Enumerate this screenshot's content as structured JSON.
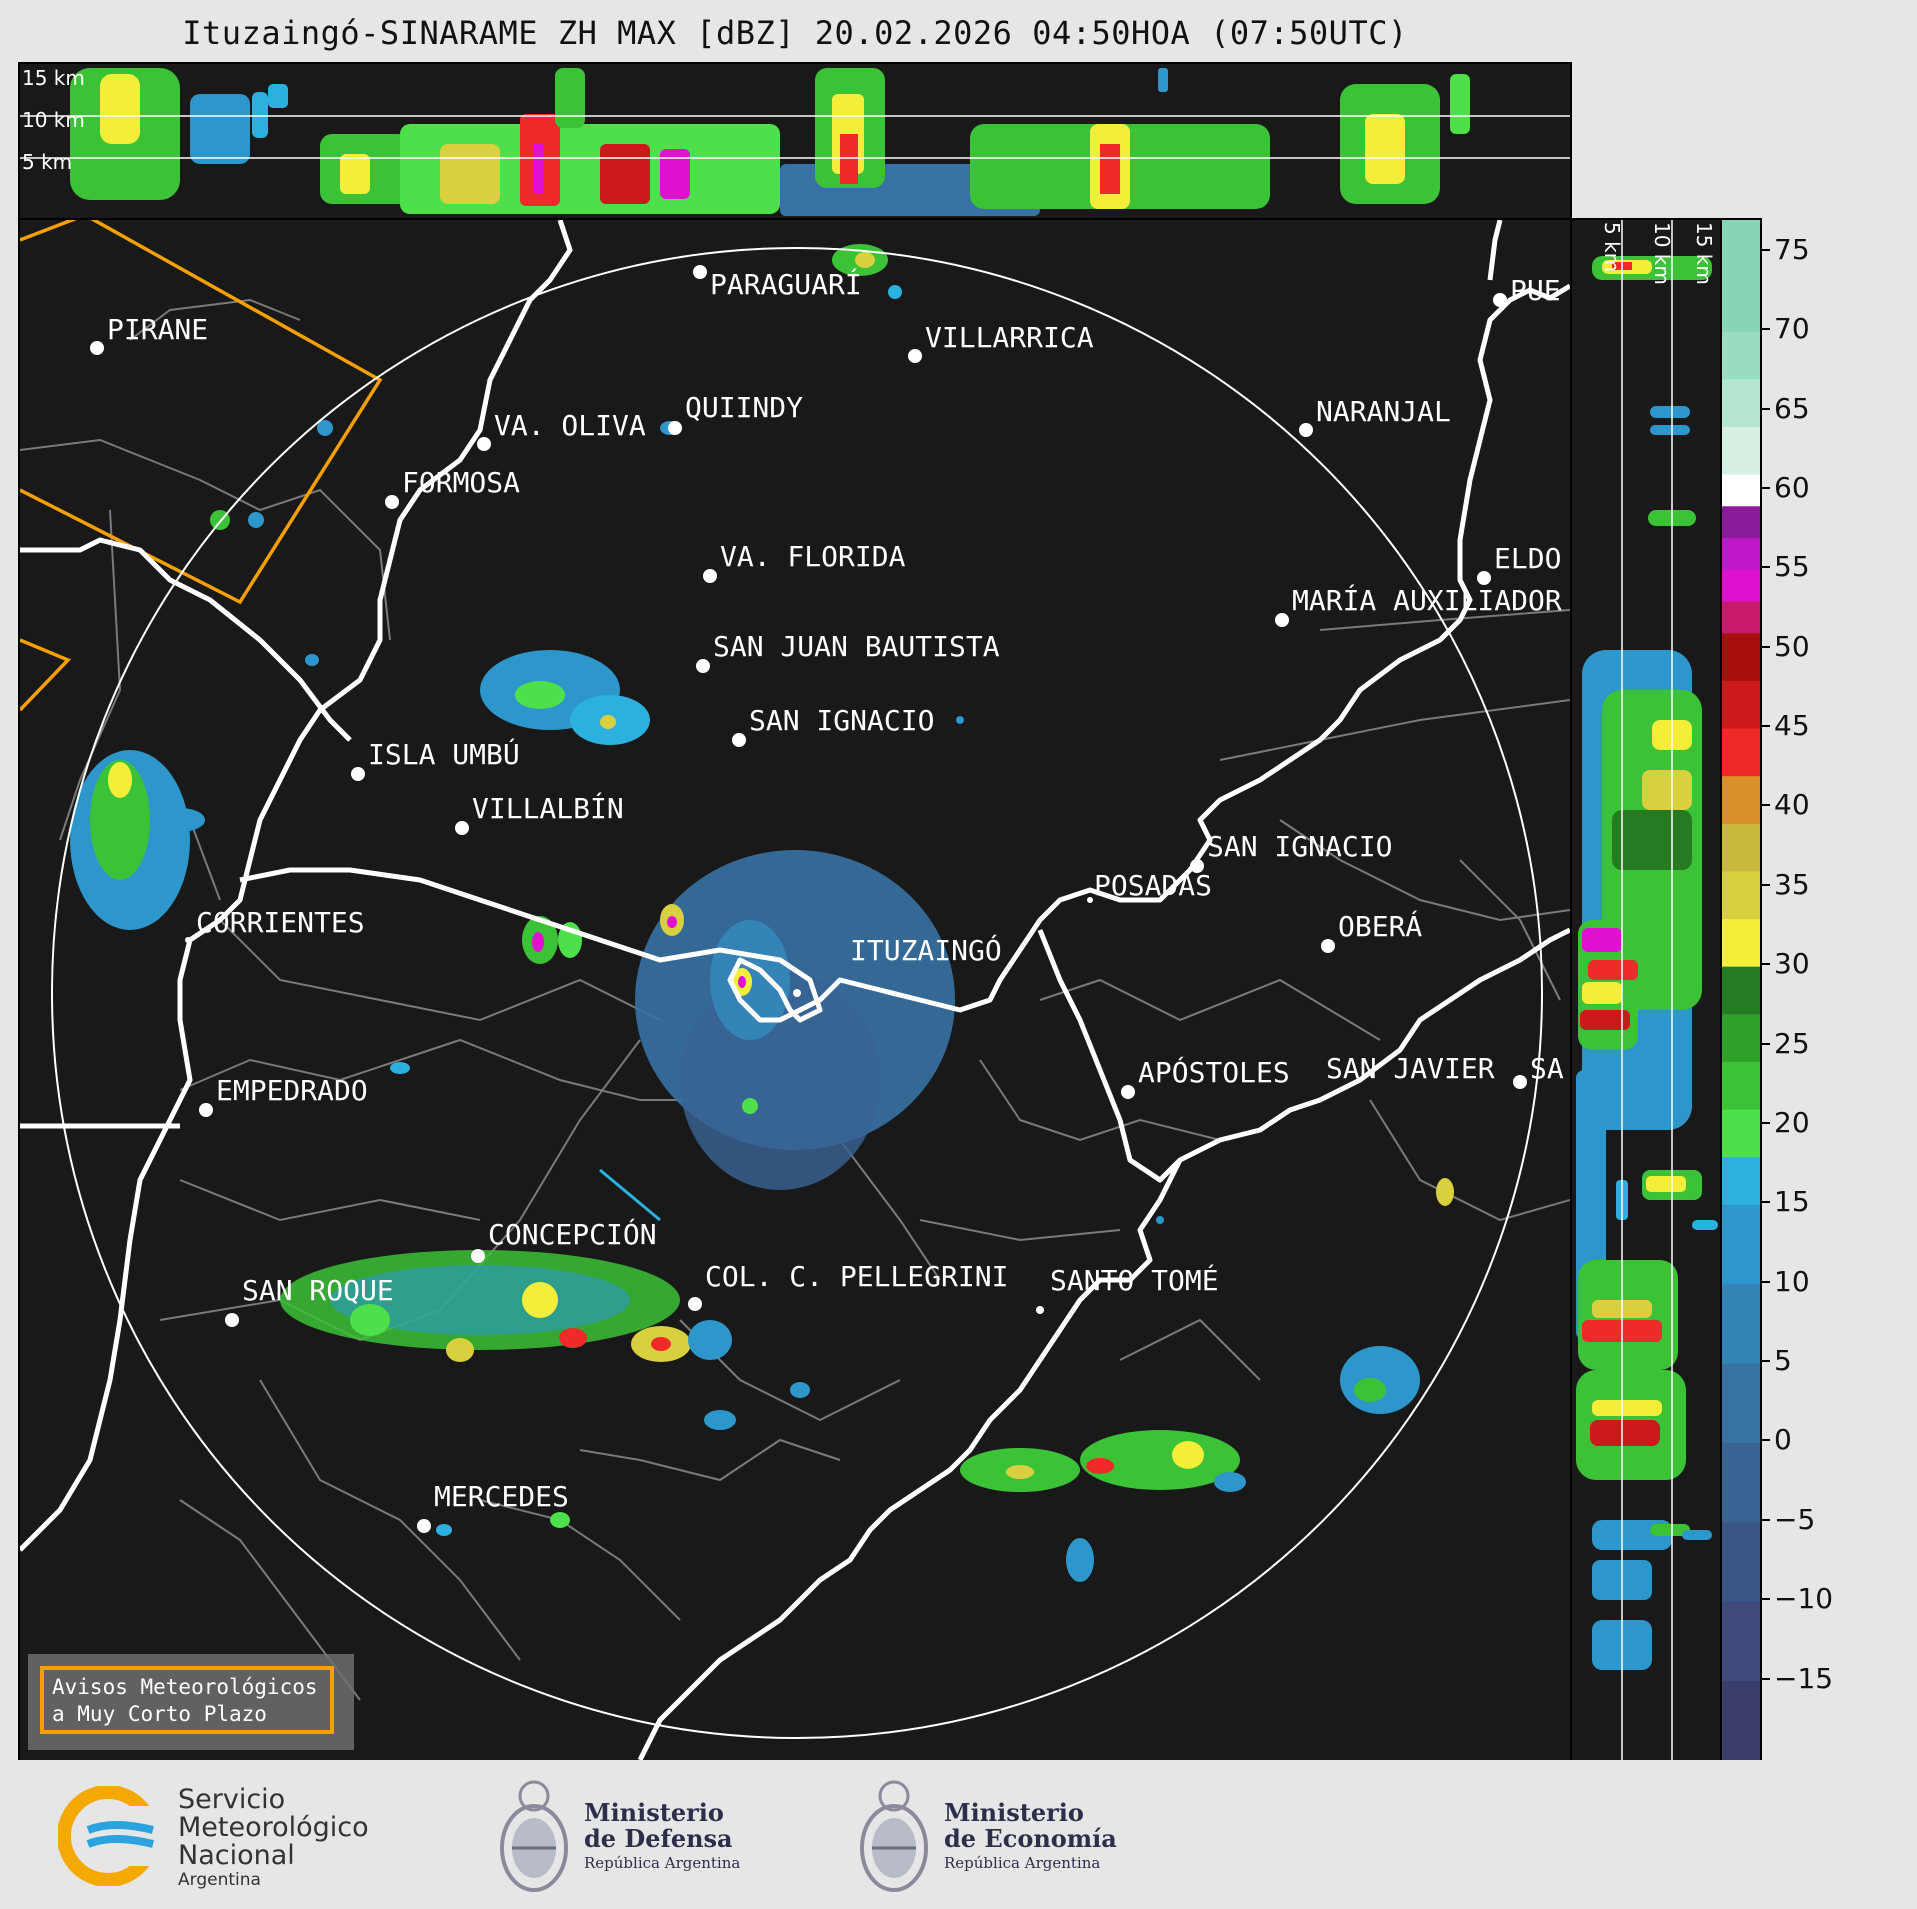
{
  "title": "Ituzaingó-SINARAME ZH MAX [dBZ] 20.02.2026 04:50HOA (07:50UTC)",
  "top_panel": {
    "altitudes": [
      "15 km",
      "10 km",
      "5 km"
    ]
  },
  "side_panel": {
    "altitudes": [
      "5 km",
      "10 km",
      "15 km"
    ]
  },
  "cities": [
    {
      "name": "PARAGUARÍ"
    },
    {
      "name": "VILLARRICA"
    },
    {
      "name": "PIRANE"
    },
    {
      "name": "QUIINDY"
    },
    {
      "name": "VA. OLIVA"
    },
    {
      "name": "NARANJAL"
    },
    {
      "name": "FORMOSA"
    },
    {
      "name": "PUE"
    },
    {
      "name": "VA. FLORIDA"
    },
    {
      "name": "ELDO"
    },
    {
      "name": "MARÍA AUXILIADOR"
    },
    {
      "name": "SAN JUAN BAUTISTA"
    },
    {
      "name": "SAN IGNACIO"
    },
    {
      "name": "ISLA UMBÚ"
    },
    {
      "name": "VILLALBÍN"
    },
    {
      "name": "SAN IGNACIO"
    },
    {
      "name": "POSADAS"
    },
    {
      "name": "CORRIENTES"
    },
    {
      "name": "OBERÁ"
    },
    {
      "name": "ITUZAINGÓ"
    },
    {
      "name": "EMPEDRADO"
    },
    {
      "name": "APÓSTOLES"
    },
    {
      "name": "SAN JAVIER"
    },
    {
      "name": "SA"
    },
    {
      "name": "CONCEPCIÓN"
    },
    {
      "name": "COL. C. PELLEGRINI"
    },
    {
      "name": "SANTO TOMÉ"
    },
    {
      "name": "SAN ROQUE"
    },
    {
      "name": "MERCEDES"
    }
  ],
  "warning_box": {
    "line1": "Avisos Meteorológicos",
    "line2": "a Muy Corto Plazo"
  },
  "colorbar": {
    "unit": "dBZ",
    "min": -20,
    "max": 77,
    "ticks": [
      "75",
      "70",
      "65",
      "60",
      "55",
      "50",
      "45",
      "40",
      "35",
      "30",
      "25",
      "20",
      "15",
      "10",
      "5",
      "0",
      "−5",
      "−10",
      "−15"
    ],
    "colors": [
      {
        "from": -20,
        "color": "#3b3d6b"
      },
      {
        "from": -15,
        "color": "#3f4a7a"
      },
      {
        "from": -10,
        "color": "#3c5588"
      },
      {
        "from": -5,
        "color": "#3a6394"
      },
      {
        "from": 0,
        "color": "#3872a3"
      },
      {
        "from": 5,
        "color": "#3584b8"
      },
      {
        "from": 10,
        "color": "#2d97cb"
      },
      {
        "from": 15,
        "color": "#2bb0df"
      },
      {
        "from": 18,
        "color": "#4ee04a"
      },
      {
        "from": 21,
        "color": "#3cc236"
      },
      {
        "from": 24,
        "color": "#2fa12b"
      },
      {
        "from": 27,
        "color": "#257a22"
      },
      {
        "from": 30,
        "color": "#f2ee3a"
      },
      {
        "from": 33,
        "color": "#d9d040"
      },
      {
        "from": 36,
        "color": "#c9b83c"
      },
      {
        "from": 39,
        "color": "#d9902a"
      },
      {
        "from": 42,
        "color": "#ee2a2a"
      },
      {
        "from": 45,
        "color": "#cc1a1a"
      },
      {
        "from": 48,
        "color": "#a80f0f"
      },
      {
        "from": 51,
        "color": "#c81a6a"
      },
      {
        "from": 53,
        "color": "#e010d0"
      },
      {
        "from": 55,
        "color": "#c018c8"
      },
      {
        "from": 57,
        "color": "#8a1a9a"
      },
      {
        "from": 59,
        "color": "#ffffff"
      },
      {
        "from": 61,
        "color": "#d6f0e4"
      },
      {
        "from": 64,
        "color": "#b4e6d0"
      },
      {
        "from": 67,
        "color": "#9adcc2"
      },
      {
        "from": 70,
        "color": "#86d6b6"
      }
    ]
  },
  "footer": {
    "smn": {
      "line1": "Servicio",
      "line2": "Meteorológico",
      "line3": "Nacional",
      "line4": "Argentina"
    },
    "defensa": {
      "line1": "Ministerio",
      "line2": "de Defensa",
      "line3": "República Argentina"
    },
    "economia": {
      "line1": "Ministerio",
      "line2": "de Economía",
      "line3": "República Argentina"
    }
  },
  "colors": {
    "background": "#191919",
    "warning_polygon": "#f5a000",
    "rivers": "#ffffff",
    "borders": "#7a7a7a"
  }
}
